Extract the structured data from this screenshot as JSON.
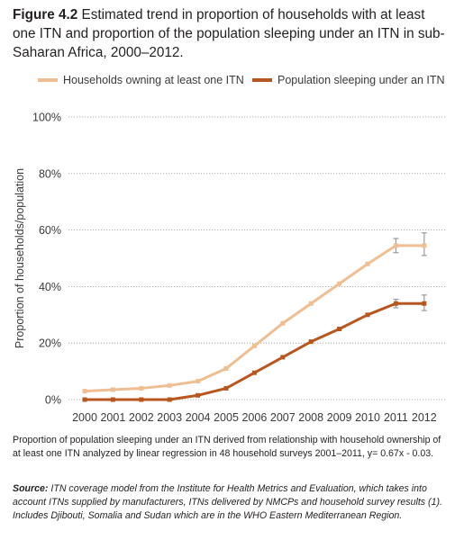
{
  "figure": {
    "number": "Figure 4.2",
    "caption": "Estimated trend in proportion of households with at least one ITN and proportion of the population sleeping under an ITN in sub-Saharan Africa, 2000–2012."
  },
  "note": "Proportion of population sleeping under an ITN derived from relationship with household ownership of at least one ITN analyzed by linear regression in 48 household surveys 2001–2011, y= 0.67x - 0.03.",
  "source": {
    "label": "Source:",
    "text": "ITN coverage model from the Institute for Health Metrics and Evaluation, which takes into account ITNs supplied by manufacturers, ITNs delivered by NMCPs and household survey results (1). Includes Djibouti, Somalia and Sudan which are in the WHO Eastern Mediterranean Region."
  },
  "colors": {
    "households": "#efbf93",
    "population": "#b8561f",
    "grid": "#9a9a9a",
    "error_bar": "#9b9b9b",
    "text": "#231f20"
  },
  "chart_data": {
    "type": "line",
    "title": "",
    "xlabel": "",
    "ylabel": "Proportion of households/population",
    "x": [
      "2000",
      "2001",
      "2002",
      "2003",
      "2004",
      "2005",
      "2006",
      "2007",
      "2008",
      "2009",
      "2010",
      "2011",
      "2012"
    ],
    "ylim": [
      0,
      100
    ],
    "y_ticks": [
      "0%",
      "20%",
      "40%",
      "60%",
      "80%",
      "100%"
    ],
    "y_tick_values": [
      0,
      20,
      40,
      60,
      80,
      100
    ],
    "grid": "horizontal dotted",
    "legend_position": "top",
    "series": [
      {
        "name": "Households owning at least one ITN",
        "values": [
          3,
          3.5,
          4,
          5,
          6.5,
          11,
          19,
          27,
          34,
          41,
          48,
          54.5,
          54.5
        ],
        "error_bars": [
          null,
          null,
          null,
          null,
          null,
          null,
          null,
          null,
          null,
          null,
          null,
          [
            52,
            57
          ],
          [
            51,
            59
          ]
        ]
      },
      {
        "name": "Population sleeping under an ITN",
        "values": [
          0,
          0,
          0,
          0,
          1.5,
          4,
          9.5,
          15,
          20.5,
          25,
          30,
          34,
          34
        ],
        "error_bars": [
          null,
          null,
          null,
          null,
          null,
          null,
          null,
          null,
          null,
          null,
          null,
          [
            32.5,
            35.5
          ],
          [
            31.5,
            37
          ]
        ]
      }
    ]
  }
}
